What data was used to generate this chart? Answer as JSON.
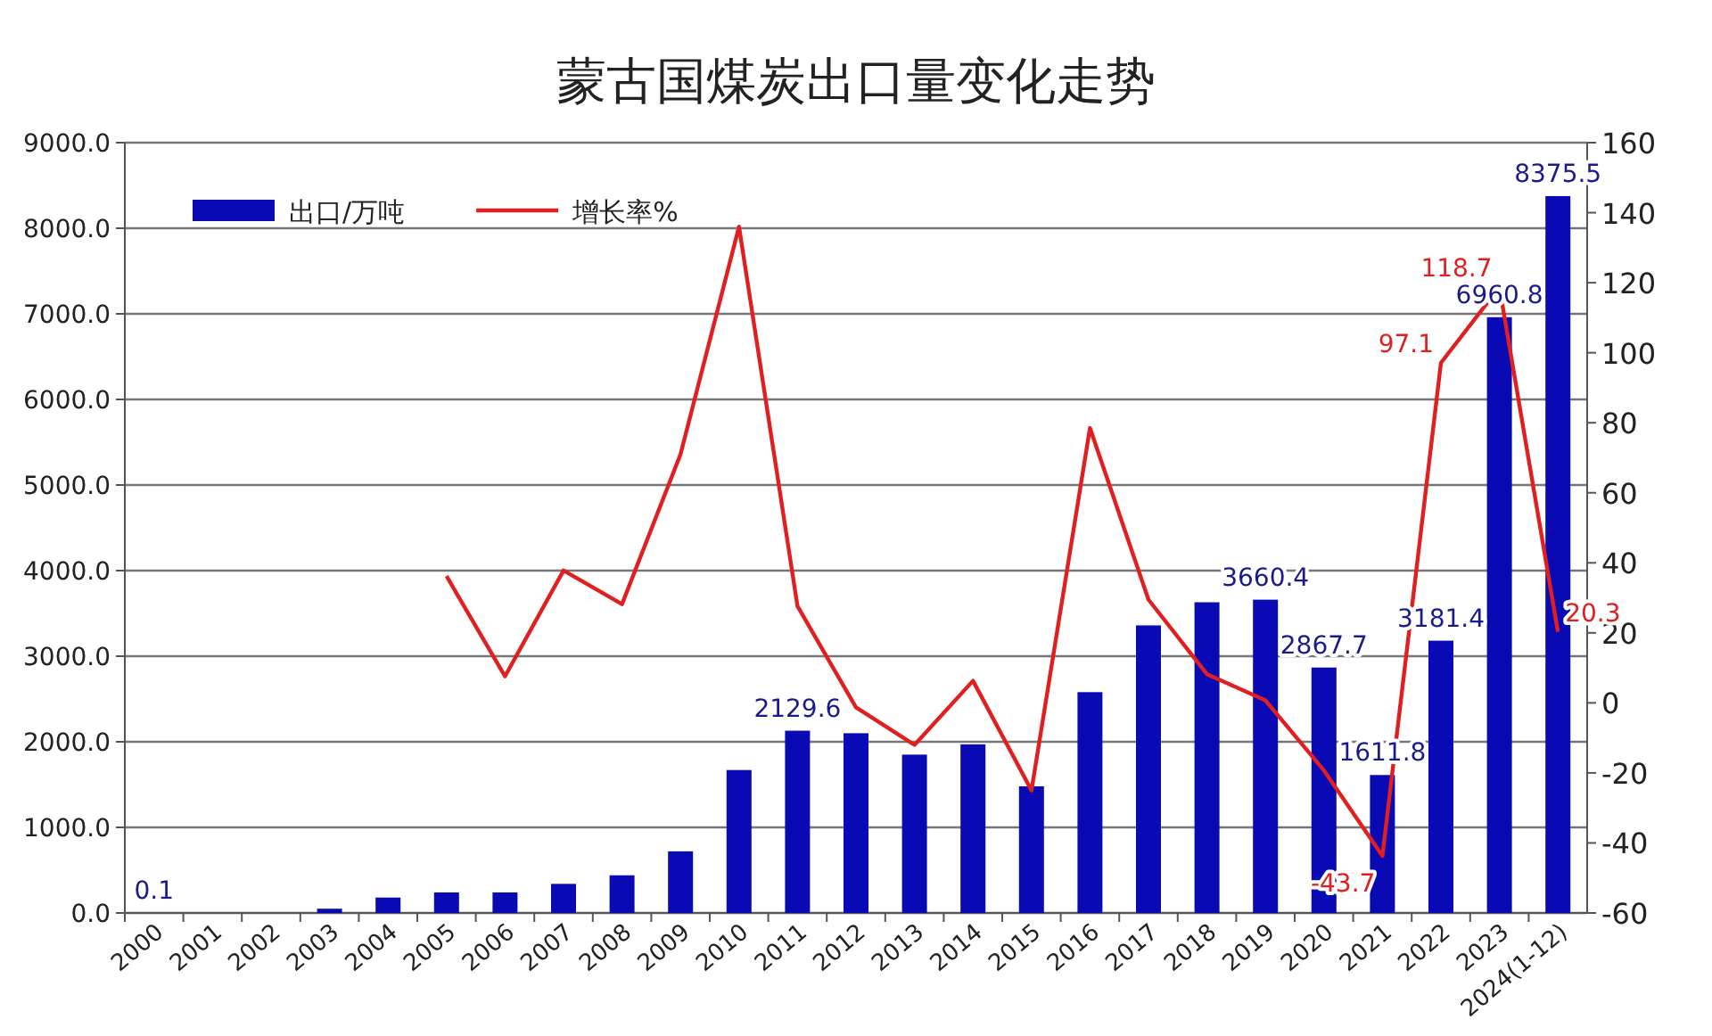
{
  "chart_data": {
    "type": "bar",
    "title": "蒙古国煤炭出口量变化走势",
    "categories": [
      "2000",
      "2001",
      "2002",
      "2003",
      "2004",
      "2005",
      "2006",
      "2007",
      "2008",
      "2009",
      "2010",
      "2011",
      "2012",
      "2013",
      "2014",
      "2015",
      "2016",
      "2017",
      "2018",
      "2019",
      "2020",
      "2021",
      "2022",
      "2023",
      "2024(1-12)"
    ],
    "series": [
      {
        "name": "出口/万吨",
        "color": "#0a0ab4",
        "values": [
          0.1,
          0,
          0,
          50,
          180,
          240,
          240,
          340,
          440,
          720,
          1670,
          2129.6,
          2100,
          1850,
          1970,
          1480,
          2580,
          3360,
          3630,
          3660.4,
          2867.7,
          1611.8,
          3181.4,
          6960.8,
          8375.5
        ],
        "value_labels": [
          "0.1",
          null,
          null,
          null,
          null,
          null,
          null,
          null,
          null,
          null,
          null,
          "2129.6",
          null,
          null,
          null,
          null,
          null,
          null,
          null,
          "3660.4",
          "2867.7",
          "1611.8",
          "3181.4",
          "6960.8",
          "8375.5"
        ]
      },
      {
        "name": "增长率%",
        "type": "line",
        "axis": "y2",
        "color": "#e02020",
        "values": [
          null,
          null,
          null,
          null,
          null,
          36.2,
          7.6,
          37.8,
          28.2,
          71,
          136,
          27.6,
          -1.3,
          -12,
          6.3,
          -25,
          78.5,
          29.5,
          8.2,
          0.7,
          -19.3,
          -43.7,
          97.1,
          118.7,
          20.3
        ],
        "value_labels": [
          null,
          null,
          null,
          null,
          null,
          null,
          null,
          null,
          null,
          null,
          null,
          null,
          null,
          null,
          null,
          null,
          null,
          null,
          null,
          null,
          null,
          "-43.7",
          "97.1",
          "118.7",
          "20.3"
        ]
      }
    ],
    "ylim": [
      0,
      9000
    ],
    "yticks": [
      {
        "value": 0,
        "label": "0.0"
      },
      {
        "value": 1000,
        "label": "1000.0"
      },
      {
        "value": 2000,
        "label": "2000.0"
      },
      {
        "value": 3000,
        "label": "3000.0"
      },
      {
        "value": 4000,
        "label": "4000.0"
      },
      {
        "value": 5000,
        "label": "5000.0"
      },
      {
        "value": 6000,
        "label": "6000.0"
      },
      {
        "value": 7000,
        "label": "7000.0"
      },
      {
        "value": 8000,
        "label": "8000.0"
      },
      {
        "value": 9000,
        "label": "9000.0"
      }
    ],
    "y2lim": [
      -60,
      160
    ],
    "y2ticks": [
      -60,
      -40,
      -20,
      0,
      20,
      40,
      60,
      80,
      100,
      120,
      140,
      160
    ],
    "grid": "y",
    "legend": "top left"
  }
}
